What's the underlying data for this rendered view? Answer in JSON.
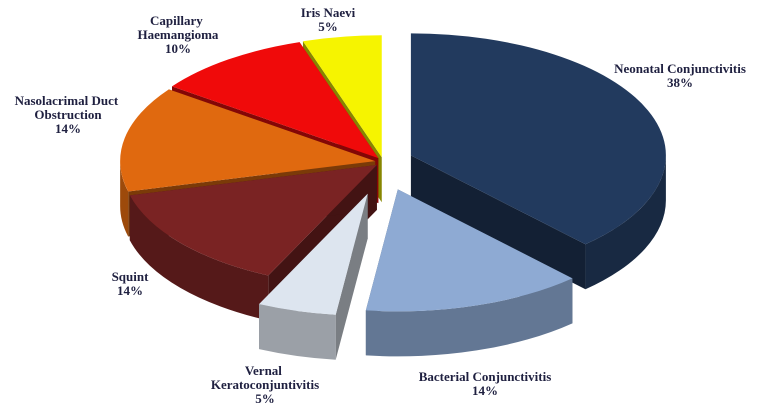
{
  "chart_data": {
    "type": "pie",
    "categories": [
      "Neonatal Conjunctivitis",
      "Bacterial Conjunctivitis",
      "Vernal Keratoconjuntivitis",
      "Squint",
      "Nasolacrimal Duct Obstruction",
      "Capillary Haemangioma",
      "Iris Naevi"
    ],
    "values": [
      38,
      14,
      5,
      14,
      14,
      10,
      5
    ],
    "value_labels": [
      "38%",
      "14%",
      "5%",
      "14%",
      "14%",
      "10%",
      "5%"
    ],
    "colors": [
      "#223a5e",
      "#8eaad3",
      "#dde5ef",
      "#7a2323",
      "#e0690f",
      "#f00a0a",
      "#f6f400"
    ]
  }
}
